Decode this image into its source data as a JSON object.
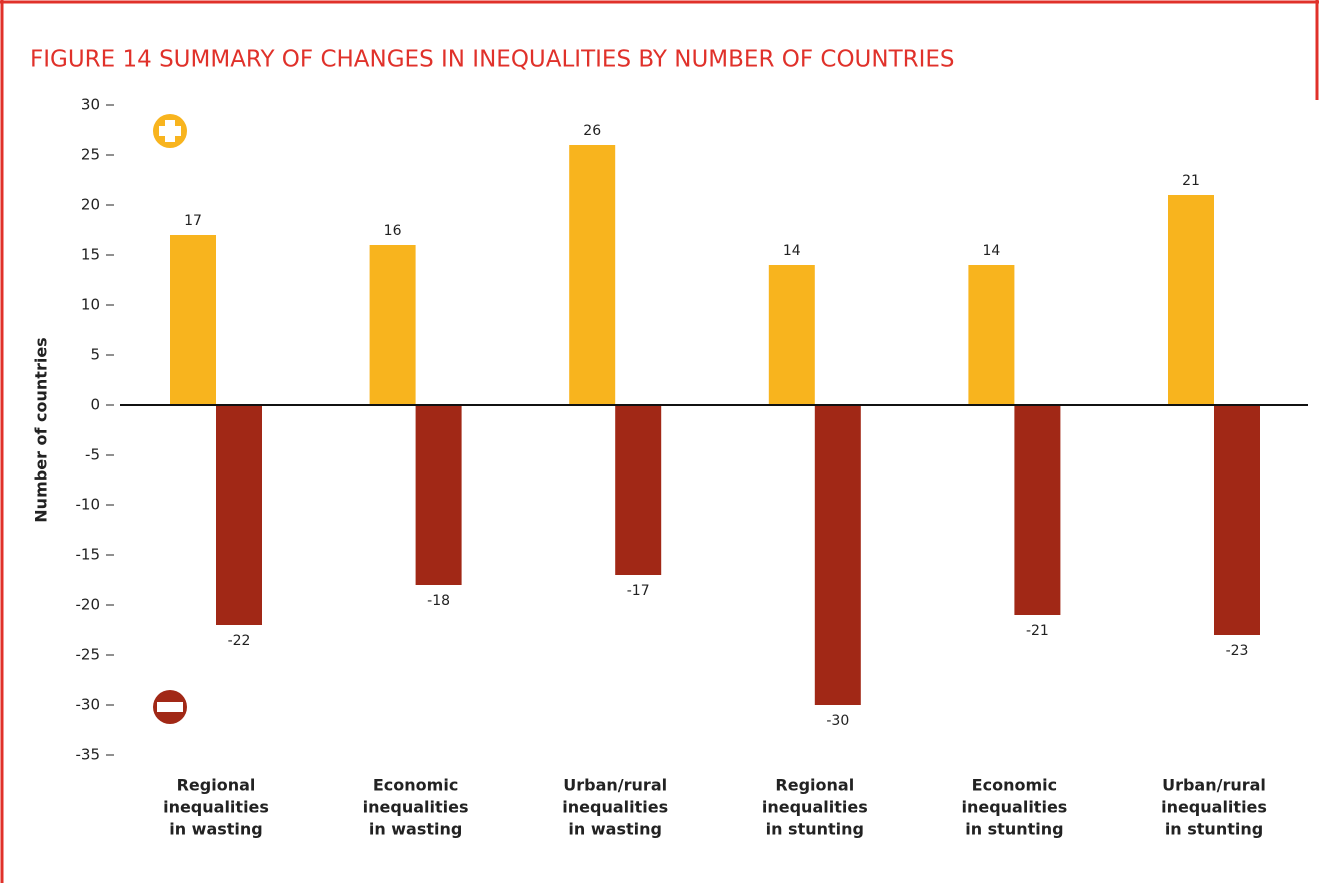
{
  "chart_data": {
    "type": "bar",
    "title": "FIGURE 14  SUMMARY OF CHANGES IN INEQUALITIES BY NUMBER OF COUNTRIES",
    "y_label": "Number of countries",
    "categories": [
      [
        "Regional",
        "inequalities",
        "in wasting"
      ],
      [
        "Economic",
        "inequalities",
        "in wasting"
      ],
      [
        "Urban/rural",
        "inequalities",
        "in wasting"
      ],
      [
        "Regional",
        "inequalities",
        "in stunting"
      ],
      [
        "Economic",
        "inequalities",
        "in stunting"
      ],
      [
        "Urban/rural",
        "inequalities",
        "in stunting"
      ]
    ],
    "series": [
      {
        "color": "#f8b41e",
        "values": [
          17,
          16,
          26,
          14,
          14,
          21
        ]
      },
      {
        "color": "#a12816",
        "values": [
          -22,
          -18,
          -17,
          -30,
          -21,
          -23
        ]
      }
    ],
    "ylim": [
      -35,
      30
    ],
    "yticks": [
      30,
      25,
      20,
      15,
      10,
      5,
      0,
      -5,
      -10,
      -15,
      -20,
      -25,
      -30,
      -35
    ],
    "grid": false
  }
}
